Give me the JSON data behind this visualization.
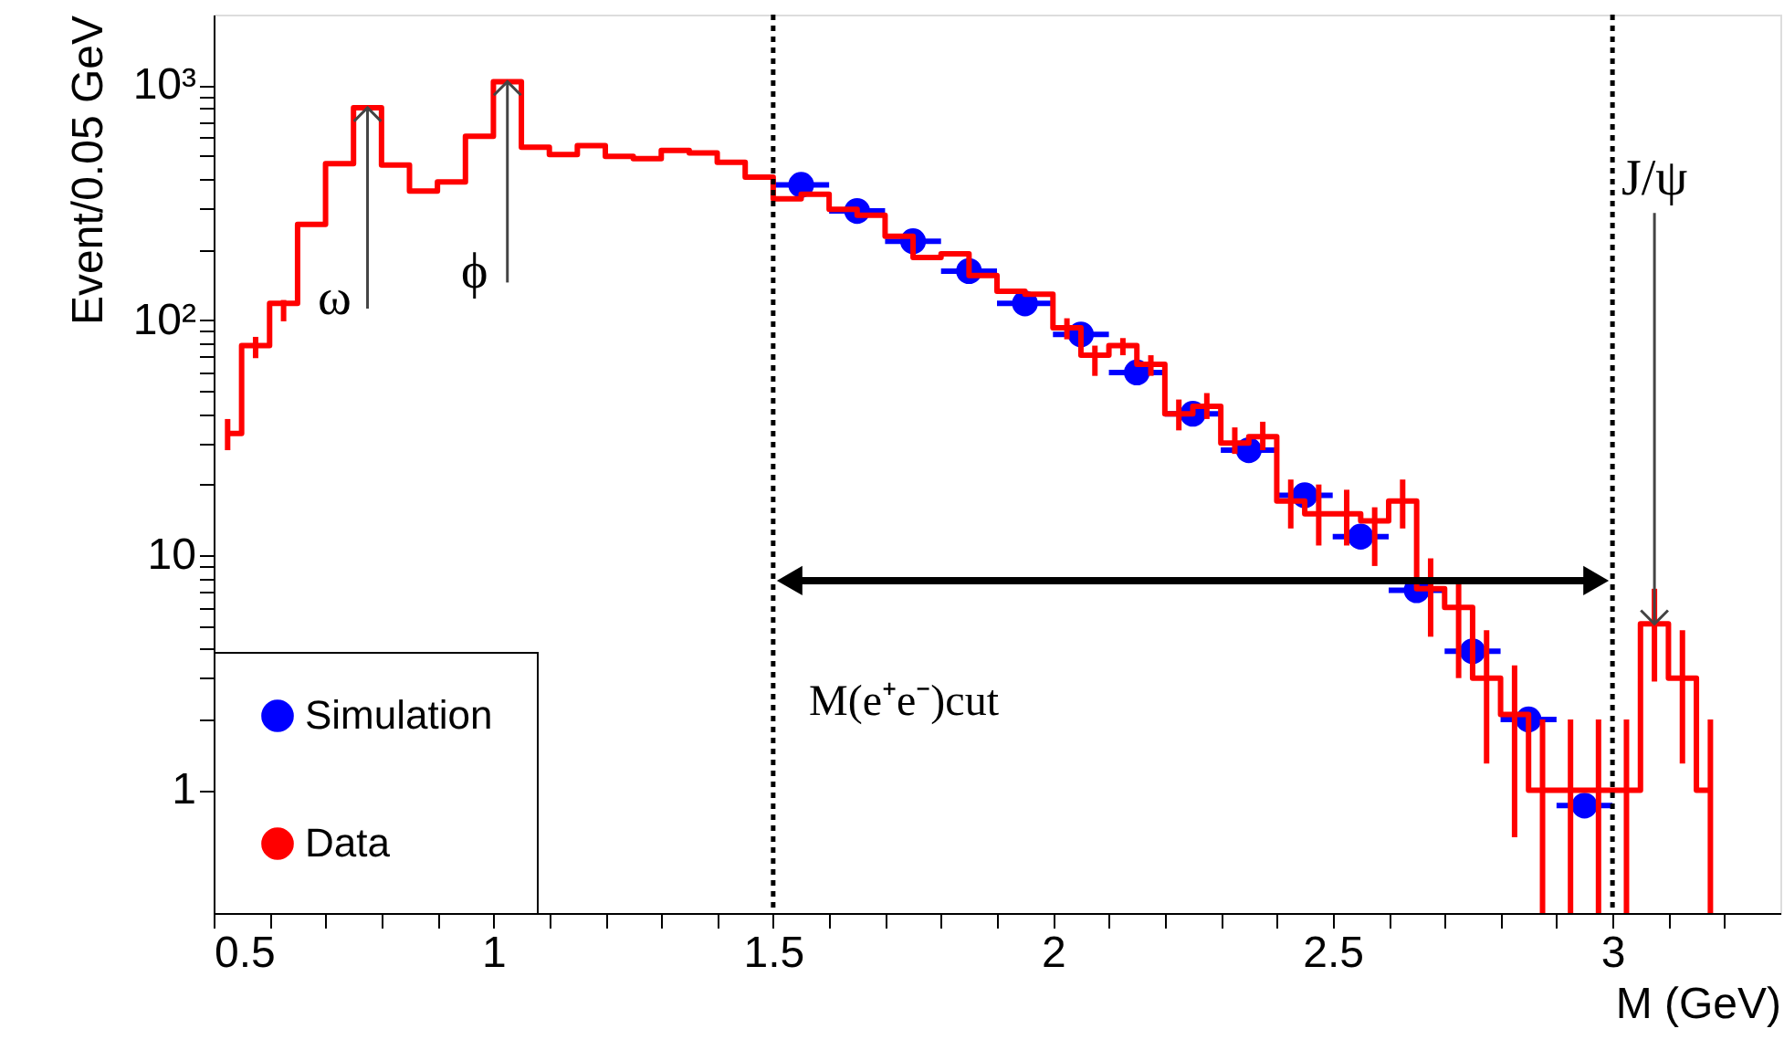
{
  "chart_data": {
    "type": "step",
    "ylabel": "Event/0.05 GeV",
    "xlabel": "M (GeV)",
    "series": [
      {
        "name": "Simulation",
        "type": "scatter",
        "marker": "circle",
        "color": "#0000ff",
        "x": [
          1.55,
          1.65,
          1.75,
          1.85,
          1.95,
          2.05,
          2.15,
          2.25,
          2.35,
          2.45,
          2.55,
          2.65,
          2.75,
          2.85,
          2.95
        ],
        "values": [
          377,
          292,
          217,
          162,
          118,
          87,
          60,
          40,
          28,
          18,
          12,
          7.1,
          3.9,
          2.0,
          0.86
        ],
        "xerrors": [
          0.05,
          0.05,
          0.05,
          0.05,
          0.05,
          0.05,
          0.05,
          0.05,
          0.05,
          0.05,
          0.05,
          0.05,
          0.05,
          0.05,
          0.05
        ]
      },
      {
        "name": "Data",
        "color": "#ff0000",
        "x": [
          0.525,
          0.575,
          0.625,
          0.675,
          0.725,
          0.775,
          0.825,
          0.875,
          0.925,
          0.975,
          1.025,
          1.075,
          1.125,
          1.175,
          1.225,
          1.275,
          1.325,
          1.375,
          1.425,
          1.475,
          1.525,
          1.575,
          1.625,
          1.675,
          1.725,
          1.775,
          1.825,
          1.875,
          1.925,
          1.975,
          2.025,
          2.075,
          2.125,
          2.175,
          2.225,
          2.275,
          2.325,
          2.375,
          2.425,
          2.475,
          2.525,
          2.575,
          2.625,
          2.675,
          2.725,
          2.775,
          2.825,
          2.875,
          2.925,
          2.975,
          3.025,
          3.075,
          3.125,
          3.175
        ],
        "values": [
          33,
          78,
          118,
          256,
          464,
          803,
          458,
          355,
          388,
          607,
          1037,
          545,
          507,
          554,
          499,
          487,
          528,
          516,
          470,
          407,
          329,
          344,
          297,
          280,
          228,
          185,
          192,
          155,
          133,
          129,
          93,
          71,
          78,
          65,
          40,
          43,
          30,
          32,
          17,
          15,
          15,
          14,
          17,
          7.2,
          6,
          3,
          2.1,
          1,
          1,
          1,
          1,
          5.1,
          3,
          1
        ],
        "errors": [
          [
            28,
            38
          ],
          [
            69,
            85
          ],
          [
            99,
            122
          ],
          null,
          null,
          null,
          null,
          null,
          null,
          null,
          null,
          null,
          null,
          null,
          null,
          null,
          null,
          null,
          null,
          null,
          null,
          null,
          null,
          null,
          null,
          null,
          null,
          null,
          null,
          null,
          [
            83,
            102
          ],
          [
            58,
            78
          ],
          [
            71,
            84
          ],
          [
            58,
            71
          ],
          [
            34,
            46
          ],
          [
            38,
            49
          ],
          [
            27,
            35
          ],
          [
            28,
            37
          ],
          [
            13,
            21
          ],
          [
            11,
            20
          ],
          [
            11,
            19
          ],
          [
            9,
            16
          ],
          [
            13,
            21
          ],
          [
            4.5,
            9.7
          ],
          [
            3,
            7.9
          ],
          [
            1.3,
            4.8
          ],
          [
            0.63,
            3.4
          ],
          [
            0.3,
            2
          ],
          [
            0.3,
            2
          ],
          [
            0.3,
            2
          ],
          [
            0.3,
            2
          ],
          [
            2.9,
            7.2
          ],
          [
            1.3,
            4.8
          ],
          [
            0.3,
            2
          ]
        ]
      }
    ],
    "xlim": [
      0.5,
      3.3
    ],
    "xticks": [
      0.5,
      {
        "value": 0.6,
        "label": null
      },
      {
        "value": 0.7,
        "label": null
      },
      {
        "value": 0.8,
        "label": null
      },
      {
        "value": 0.9,
        "label": null
      },
      1,
      {
        "value": 1.1,
        "label": null
      },
      {
        "value": 1.2,
        "label": null
      },
      {
        "value": 1.3,
        "label": null
      },
      {
        "value": 1.4,
        "label": null
      },
      1.5,
      {
        "value": 1.6,
        "label": null
      },
      {
        "value": 1.7,
        "label": null
      },
      {
        "value": 1.8,
        "label": null
      },
      {
        "value": 1.9,
        "label": null
      },
      2,
      {
        "value": 2.1,
        "label": null
      },
      {
        "value": 2.2,
        "label": null
      },
      {
        "value": 2.3,
        "label": null
      },
      {
        "value": 2.4,
        "label": null
      },
      2.5,
      {
        "value": 2.6,
        "label": null
      },
      {
        "value": 2.7,
        "label": null
      },
      {
        "value": 2.8,
        "label": null
      },
      {
        "value": 2.9,
        "label": null
      },
      3,
      {
        "value": 3.1,
        "label": null
      },
      {
        "value": 3.2,
        "label": null
      }
    ],
    "ylim": [
      0.3,
      2000
    ],
    "yticks": [
      1,
      {
        "value": 2,
        "label": null
      },
      {
        "value": 3,
        "label": null
      },
      {
        "value": 4,
        "label": null
      },
      {
        "value": 5,
        "label": null
      },
      {
        "value": 6,
        "label": null
      },
      {
        "value": 7,
        "label": null
      },
      {
        "value": 8,
        "label": null
      },
      {
        "value": 9,
        "label": null
      },
      10,
      {
        "value": 20,
        "label": null
      },
      {
        "value": 30,
        "label": null
      },
      {
        "value": 40,
        "label": null
      },
      {
        "value": 50,
        "label": null
      },
      {
        "value": 60,
        "label": null
      },
      {
        "value": 70,
        "label": null
      },
      {
        "value": 80,
        "label": null
      },
      {
        "value": 90,
        "label": null
      },
      {
        "value": 100,
        "label": "10²"
      },
      {
        "value": 200,
        "label": null
      },
      {
        "value": 300,
        "label": null
      },
      {
        "value": 400,
        "label": null
      },
      {
        "value": 500,
        "label": null
      },
      {
        "value": 600,
        "label": null
      },
      {
        "value": 700,
        "label": null
      },
      {
        "value": 800,
        "label": null
      },
      {
        "value": 900,
        "label": null
      },
      {
        "value": 1000,
        "label": "10³"
      }
    ],
    "log": true,
    "grid": false,
    "legend": "bottom left",
    "line_style": "solid",
    "ref_lines": [
      {
        "axis": "x",
        "value": 1.5,
        "color": "#000000",
        "line_style": "dotted"
      },
      {
        "axis": "x",
        "value": 3.0,
        "color": "#000000",
        "line_style": "dotted"
      }
    ],
    "annotations": [
      {
        "text": "ω",
        "x": 0.775,
        "y": 803
      },
      {
        "text": "ϕ",
        "x": 1.025,
        "y": 1037
      },
      {
        "text": "J/ψ",
        "x": 3.075,
        "y": 5.1
      },
      "M(e⁺e⁻)cut"
    ]
  }
}
